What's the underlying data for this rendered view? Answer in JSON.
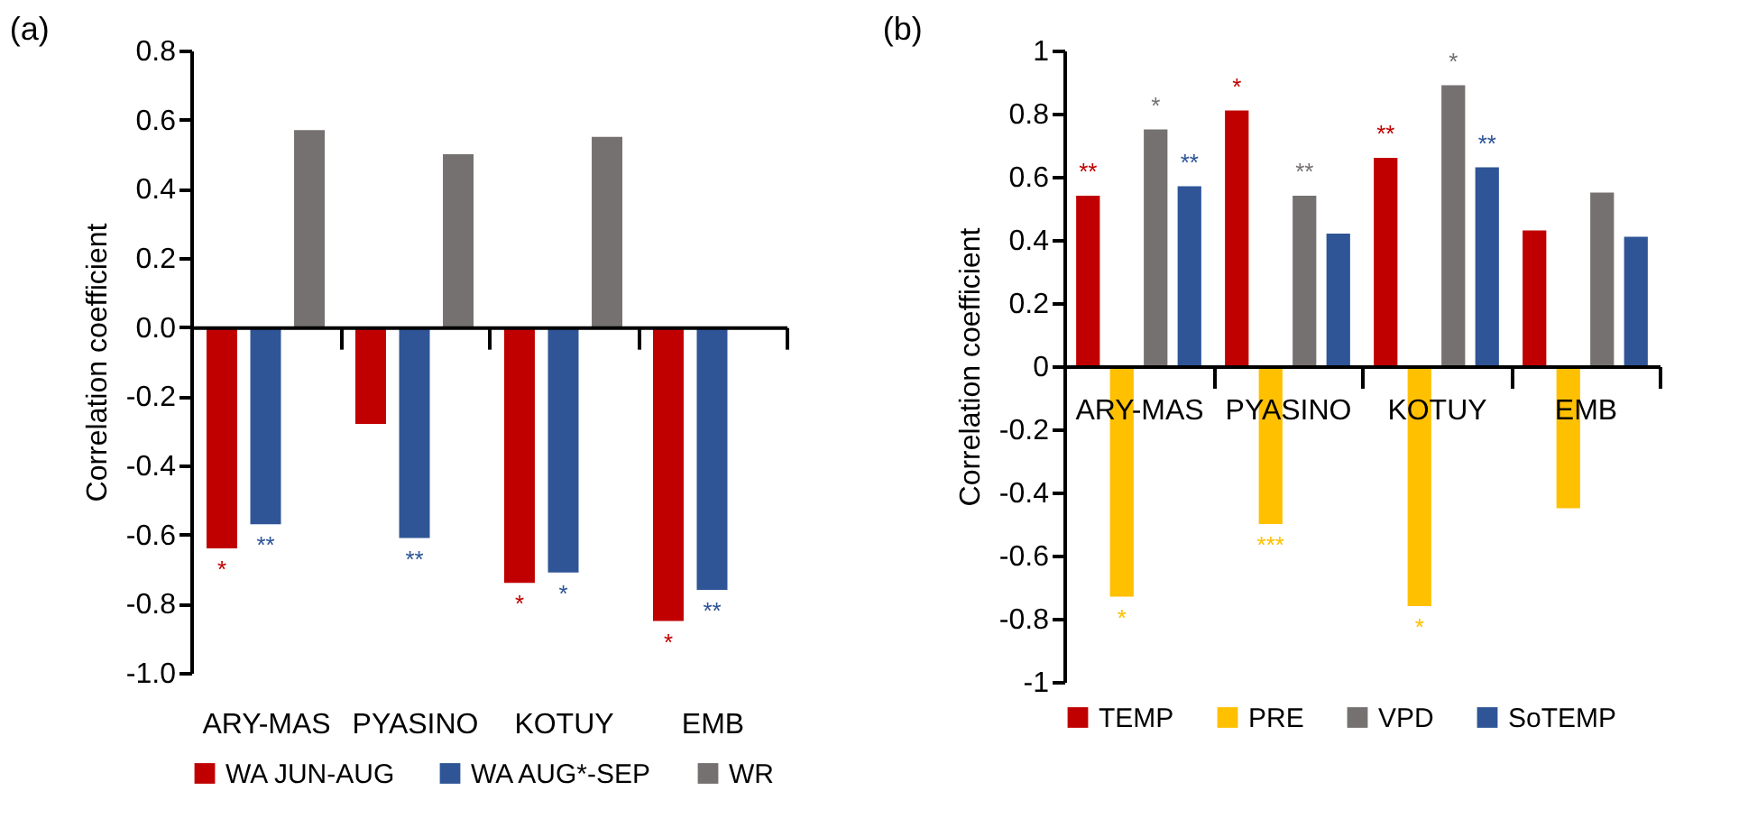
{
  "chart_data": [
    {
      "type": "bar",
      "title": "(a)",
      "ylabel": "Correlation coefficient",
      "categories": [
        "ARY-MAS",
        "PYASINO",
        "KOTUY",
        "EMB"
      ],
      "series": [
        {
          "name": "WA JUN-AUG",
          "color": "#c00000",
          "values": [
            -0.64,
            -0.28,
            -0.74,
            -0.85
          ],
          "value_labels": [
            "*",
            null,
            "*",
            "*"
          ]
        },
        {
          "name": "WA AUG*-SEP",
          "color": "#2f5597",
          "values": [
            -0.57,
            -0.61,
            -0.71,
            -0.76
          ],
          "value_labels": [
            "**",
            "**",
            "*",
            "**"
          ]
        },
        {
          "name": "WR",
          "color": "#767171",
          "values": [
            0.57,
            0.5,
            0.55,
            null
          ],
          "value_labels": [
            null,
            null,
            null,
            null
          ]
        }
      ],
      "ylim": [
        -1.0,
        0.8
      ],
      "yticks": [
        {
          "value": -1.0,
          "label": "-1.0"
        },
        -0.8,
        -0.6,
        -0.4,
        -0.2,
        {
          "value": 0,
          "label": "0.0"
        },
        0.2,
        0.4,
        0.6,
        0.8
      ],
      "legend": "bottom"
    },
    {
      "type": "bar",
      "title": "(b)",
      "ylabel": "Correlation coefficient",
      "categories": [
        "ARY-MAS",
        "PYASINO",
        "KOTUY",
        "EMB"
      ],
      "series": [
        {
          "name": "TEMP",
          "color": "#c00000",
          "values": [
            0.54,
            0.81,
            0.66,
            0.43
          ],
          "value_labels": [
            "**",
            "*",
            "**",
            null
          ]
        },
        {
          "name": "PRE",
          "color": "#ffc000",
          "values": [
            -0.73,
            -0.5,
            -0.76,
            -0.45
          ],
          "value_labels": [
            "*",
            "***",
            "*",
            null
          ]
        },
        {
          "name": "VPD",
          "color": "#767171",
          "values": [
            0.75,
            0.54,
            0.89,
            0.55
          ],
          "value_labels": [
            "*",
            "**",
            "*",
            null
          ]
        },
        {
          "name": "SoTEMP",
          "color": "#2f5597",
          "values": [
            0.57,
            0.42,
            0.63,
            0.41
          ],
          "value_labels": [
            "**",
            null,
            "**",
            null
          ]
        }
      ],
      "ylim": [
        -1,
        1
      ],
      "yticks": [
        -1,
        -0.8,
        -0.6,
        -0.4,
        -0.2,
        0,
        0.2,
        0.4,
        0.6,
        0.8,
        1
      ],
      "legend": "bottom"
    }
  ]
}
